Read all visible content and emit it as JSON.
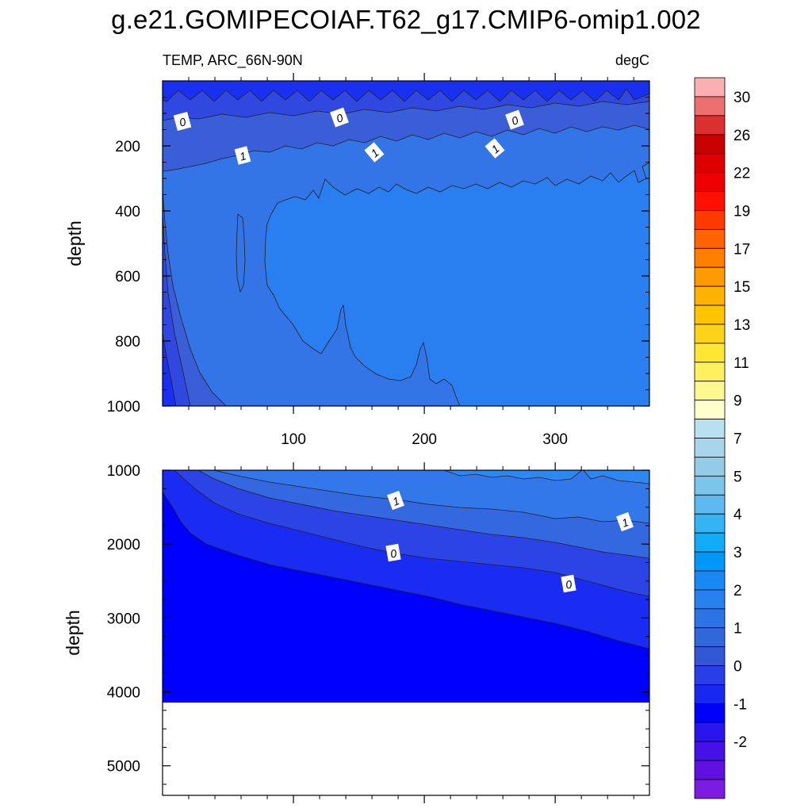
{
  "chart_data": [
    {
      "type": "heatmap",
      "title": "g.e21.GOMIPECOIAF.T62_g17.CMIP6-omip1.002",
      "left_label": "TEMP, ARC_66N-90N",
      "right_label": "degC",
      "ylabel": "depth",
      "xlabel": "",
      "xlim": [
        0,
        372
      ],
      "ylim": [
        0,
        1000
      ],
      "x_ticks": [
        100,
        200,
        300
      ],
      "y_ticks": [
        200,
        400,
        600,
        800,
        1000
      ],
      "y_inverted": true,
      "contour_labels": [
        "0",
        "0",
        "0",
        "1",
        "1",
        "1"
      ]
    },
    {
      "type": "heatmap",
      "ylabel": "depth",
      "xlabel": "",
      "xlim": [
        0,
        372
      ],
      "ylim": [
        1000,
        5400
      ],
      "y_ticks": [
        1000,
        2000,
        3000,
        4000,
        5000
      ],
      "y_inverted": true,
      "contour_labels": [
        "1",
        "1",
        "0",
        "0"
      ]
    }
  ],
  "colorbar": {
    "labels": [
      "30",
      "26",
      "22",
      "19",
      "17",
      "15",
      "13",
      "11",
      "9",
      "7",
      "5",
      "4",
      "3",
      "2",
      "1",
      "0",
      "-1",
      "-2"
    ],
    "colors": [
      "#f8b0b0",
      "#ec7070",
      "#dc3030",
      "#c80000",
      "#de0000",
      "#ee0000",
      "#ff1000",
      "#ff3a00",
      "#ff6400",
      "#ff7e00",
      "#ff9a00",
      "#ffb200",
      "#ffc400",
      "#ffd21a",
      "#ffe634",
      "#fff060",
      "#fff890",
      "#ffffcc",
      "#b8e0f0",
      "#a8d4ec",
      "#94cce8",
      "#7cc4ec",
      "#5cbaf0",
      "#34b4f4",
      "#10acf8",
      "#0098f8",
      "#1a88f4",
      "#2680ee",
      "#2c74e6",
      "#3068dc",
      "#3256d4",
      "#2a3ee8",
      "#1828f0",
      "#0000ff",
      "#2a14ee",
      "#4412e6",
      "#6010e0",
      "#7c1ce0"
    ]
  }
}
